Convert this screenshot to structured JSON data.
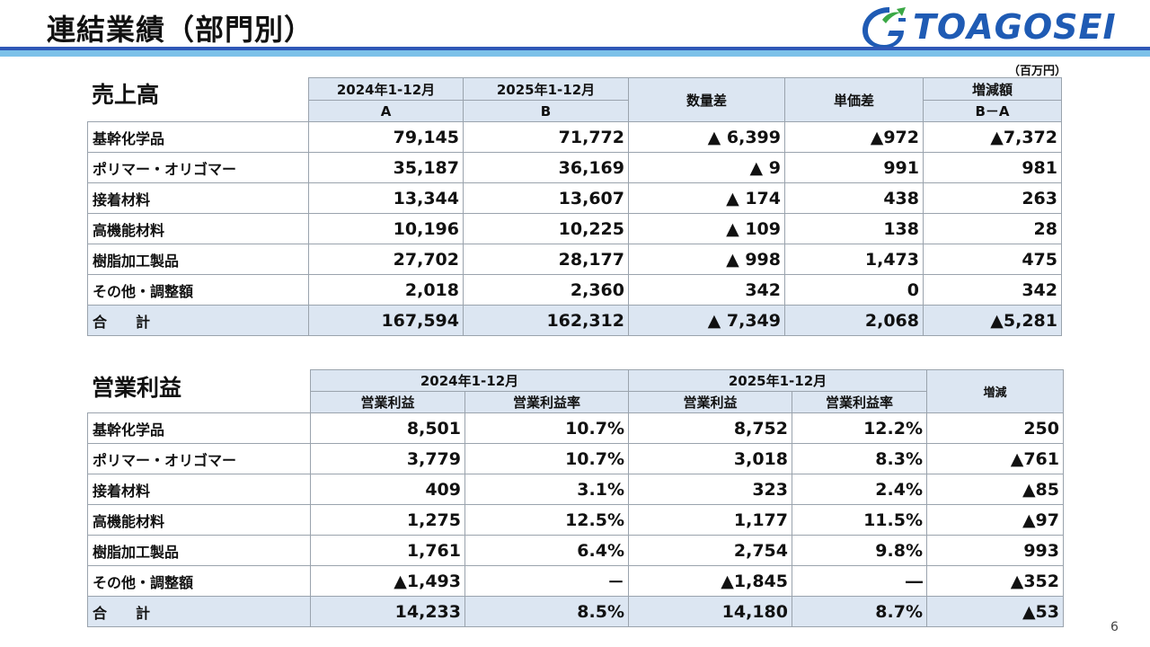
{
  "header": {
    "title": "連結業績（部門別）",
    "logo_text": "TOAGOSEI",
    "unit": "（百万円）"
  },
  "sales": {
    "title": "売上高",
    "headers": {
      "period_a": "2024年1-12月",
      "period_b": "2025年1-12月",
      "col_a": "A",
      "col_b": "B",
      "volume_diff": "数量差",
      "price_diff": "単価差",
      "change": "増減額",
      "change_sub": "B－A"
    },
    "rows": [
      {
        "label": "基幹化学品",
        "a": "79,145",
        "b": "71,772",
        "volume": "▲ 6,399",
        "price": "▲972",
        "change": "▲7,372"
      },
      {
        "label": "ポリマー・オリゴマー",
        "a": "35,187",
        "b": "36,169",
        "volume": "▲ 9",
        "price": "991",
        "change": "981"
      },
      {
        "label": "接着材料",
        "a": "13,344",
        "b": "13,607",
        "volume": "▲ 174",
        "price": "438",
        "change": "263"
      },
      {
        "label": "高機能材料",
        "a": "10,196",
        "b": "10,225",
        "volume": "▲ 109",
        "price": "138",
        "change": "28"
      },
      {
        "label": "樹脂加工製品",
        "a": "27,702",
        "b": "28,177",
        "volume": "▲ 998",
        "price": "1,473",
        "change": "475"
      },
      {
        "label": "その他・調整額",
        "a": "2,018",
        "b": "2,360",
        "volume": "342",
        "price": "0",
        "change": "342"
      }
    ],
    "total": {
      "label": "合　　計",
      "a": "167,594",
      "b": "162,312",
      "volume": "▲ 7,349",
      "price": "2,068",
      "change": "▲5,281"
    }
  },
  "op": {
    "title": "営業利益",
    "headers": {
      "period_a": "2024年1-12月",
      "period_b": "2025年1-12月",
      "profit": "営業利益",
      "margin": "営業利益率",
      "change": "増減"
    },
    "rows": [
      {
        "label": "基幹化学品",
        "p1": "8,501",
        "m1": "10.7%",
        "p2": "8,752",
        "m2": "12.2%",
        "change": "250"
      },
      {
        "label": "ポリマー・オリゴマー",
        "p1": "3,779",
        "m1": "10.7%",
        "p2": "3,018",
        "m2": "8.3%",
        "change": "▲761"
      },
      {
        "label": "接着材料",
        "p1": "409",
        "m1": "3.1%",
        "p2": "323",
        "m2": "2.4%",
        "change": "▲85"
      },
      {
        "label": "高機能材料",
        "p1": "1,275",
        "m1": "12.5%",
        "p2": "1,177",
        "m2": "11.5%",
        "change": "▲97"
      },
      {
        "label": "樹脂加工製品",
        "p1": "1,761",
        "m1": "6.4%",
        "p2": "2,754",
        "m2": "9.8%",
        "change": "993"
      },
      {
        "label": "その他・調整額",
        "p1": "▲1,493",
        "m1": "－",
        "p2": "▲1,845",
        "m2": "―",
        "change": "▲352"
      }
    ],
    "total": {
      "label": "合　　計",
      "p1": "14,233",
      "m1": "8.5%",
      "p2": "14,180",
      "m2": "8.7%",
      "change": "▲53"
    }
  },
  "footer": {
    "page_number": "6"
  }
}
